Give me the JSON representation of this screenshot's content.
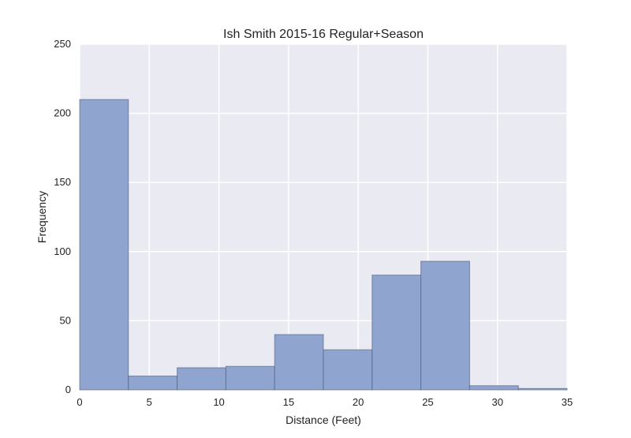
{
  "chart_data": {
    "type": "bar",
    "title": "Ish Smith 2015-16 Regular+Season",
    "xlabel": "Distance (Feet)",
    "ylabel": "Frequency",
    "xlim": [
      0,
      35
    ],
    "ylim": [
      0,
      250
    ],
    "x_ticks": [
      0,
      5,
      10,
      15,
      20,
      25,
      30,
      35
    ],
    "y_ticks": [
      0,
      50,
      100,
      150,
      200,
      250
    ],
    "grid": true,
    "bins": [
      {
        "start": 0.0,
        "end": 3.5,
        "value": 210
      },
      {
        "start": 3.5,
        "end": 7.0,
        "value": 10
      },
      {
        "start": 7.0,
        "end": 10.5,
        "value": 16
      },
      {
        "start": 10.5,
        "end": 14.0,
        "value": 17
      },
      {
        "start": 14.0,
        "end": 17.5,
        "value": 40
      },
      {
        "start": 17.5,
        "end": 21.0,
        "value": 29
      },
      {
        "start": 21.0,
        "end": 24.5,
        "value": 83
      },
      {
        "start": 24.5,
        "end": 28.0,
        "value": 93
      },
      {
        "start": 28.0,
        "end": 31.5,
        "value": 3
      },
      {
        "start": 31.5,
        "end": 35.0,
        "value": 1
      }
    ],
    "colors": {
      "background": "#eaeaf2",
      "grid": "#ffffff",
      "bar_fill": "#8fa5cf",
      "bar_stroke": "#4a5a7a"
    }
  }
}
